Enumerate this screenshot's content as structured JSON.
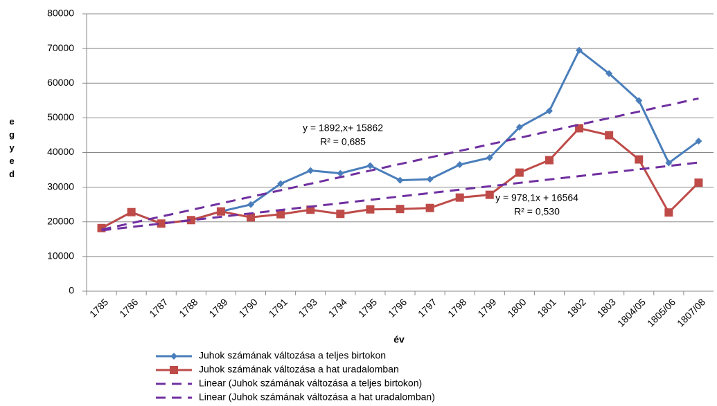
{
  "chart_data": {
    "type": "line",
    "categories": [
      "1785",
      "1786",
      "1787",
      "1788",
      "1789",
      "1790",
      "1791",
      "1793",
      "1794",
      "1795",
      "1796",
      "1797",
      "1798",
      "1799",
      "1800",
      "1801",
      "1802",
      "1803",
      "1804/05",
      "1805/06",
      "1807/08"
    ],
    "series": [
      {
        "name": "Juhok számának változása a teljes birtokon",
        "color": "#4a7ebb",
        "marker": "diamond",
        "dash": false,
        "values": [
          18200,
          22800,
          19500,
          20500,
          23000,
          25000,
          31000,
          34800,
          34000,
          36200,
          32000,
          32300,
          36500,
          38500,
          47300,
          52000,
          69500,
          62800,
          55000,
          37000,
          43300
        ]
      },
      {
        "name": "Juhok számának változása a hat uradalomban",
        "color": "#be4b48",
        "marker": "square",
        "dash": false,
        "values": [
          18200,
          22800,
          19500,
          20500,
          23000,
          21300,
          22200,
          23500,
          22300,
          23600,
          23700,
          24000,
          27000,
          27800,
          34200,
          37800,
          47000,
          45000,
          38000,
          22700,
          31300
        ]
      },
      {
        "name": "Linear (Juhok számának változása a teljes birtokon)",
        "color": "#7030a0",
        "marker": "none",
        "dash": true,
        "values": [
          17754,
          19646,
          21538,
          23430,
          25322,
          27214,
          29106,
          30998,
          32890,
          34782,
          36674,
          38566,
          40458,
          42350,
          44242,
          46134,
          48026,
          49918,
          51810,
          53702,
          55594
        ]
      },
      {
        "name": "Linear (Juhok számának változása a hat uradalomban)",
        "color": "#7030a0",
        "marker": "none",
        "dash": true,
        "values": [
          17542,
          18520,
          19498,
          20476,
          21455,
          22433,
          23411,
          24389,
          25367,
          26345,
          27323,
          28301,
          29279,
          30257,
          31236,
          32214,
          33192,
          34170,
          35148,
          36126,
          37104
        ]
      }
    ],
    "ylim": [
      0,
      80000
    ],
    "yticks": [
      0,
      10000,
      20000,
      30000,
      40000,
      50000,
      60000,
      70000,
      80000
    ],
    "grid": true,
    "xlabel": "év",
    "ylabel": "egyed",
    "annotations": [
      "y = 1892,x+ 15862",
      "R² = 0,685",
      "y = 978,1x + 16564",
      "R² = 0,530"
    ],
    "legend": "bottom"
  }
}
